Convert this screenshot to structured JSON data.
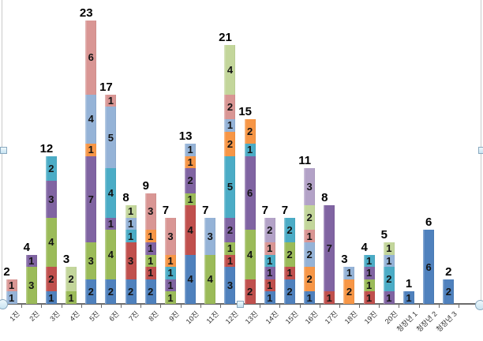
{
  "chart_data": {
    "type": "bar",
    "stacked": true,
    "title": "",
    "xlabel": "",
    "ylabel": "",
    "ylim": [
      0,
      23
    ],
    "gridlines": false,
    "value_axis_labels_visible": false,
    "legend": "none",
    "category_label_rotation_deg": 45,
    "palette": {
      "blue": "#4F81BD",
      "red": "#C0504D",
      "green": "#9BBB59",
      "purple": "#8064A2",
      "teal": "#4BACC6",
      "orange": "#F79646",
      "light-blue": "#95B3D7",
      "salmon": "#D99694",
      "light-green": "#C3D69B",
      "lavender": "#B3A2C7"
    },
    "categories": [
      "1진",
      "2진",
      "3진",
      "4진",
      "5진",
      "6진",
      "7진",
      "8진",
      "9진",
      "10진",
      "11진",
      "12진",
      "13진",
      "14진",
      "15진",
      "16진",
      "17진",
      "18진",
      "19진",
      "20진",
      "청장년 1",
      "청장년 2",
      "청장년 3"
    ],
    "bars": [
      {
        "category": "1진",
        "total": 2,
        "segments": [
          {
            "color": "light-blue",
            "value": 1
          },
          {
            "color": "salmon",
            "value": 1
          }
        ]
      },
      {
        "category": "2진",
        "total": 4,
        "segments": [
          {
            "color": "green",
            "value": 3
          },
          {
            "color": "purple",
            "value": 1
          }
        ]
      },
      {
        "category": "3진",
        "total": 12,
        "segments": [
          {
            "color": "blue",
            "value": 1
          },
          {
            "color": "red",
            "value": 2
          },
          {
            "color": "green",
            "value": 4
          },
          {
            "color": "purple",
            "value": 3
          },
          {
            "color": "teal",
            "value": 2
          }
        ]
      },
      {
        "category": "4진",
        "total": 3,
        "segments": [
          {
            "color": "green",
            "value": 1
          },
          {
            "color": "light-green",
            "value": 2
          }
        ]
      },
      {
        "category": "5진",
        "total": 23,
        "segments": [
          {
            "color": "blue",
            "value": 2
          },
          {
            "color": "green",
            "value": 3
          },
          {
            "color": "purple",
            "value": 7
          },
          {
            "color": "orange",
            "value": 1
          },
          {
            "color": "light-blue",
            "value": 4
          },
          {
            "color": "salmon",
            "value": 6
          }
        ]
      },
      {
        "category": "6진",
        "total": 17,
        "segments": [
          {
            "color": "blue",
            "value": 2
          },
          {
            "color": "green",
            "value": 4
          },
          {
            "color": "purple",
            "value": 1
          },
          {
            "color": "teal",
            "value": 4
          },
          {
            "color": "light-blue",
            "value": 5
          },
          {
            "color": "salmon",
            "value": 1
          }
        ]
      },
      {
        "category": "7진",
        "total": 8,
        "segments": [
          {
            "color": "blue",
            "value": 2
          },
          {
            "color": "red",
            "value": 3
          },
          {
            "color": "teal",
            "value": 1
          },
          {
            "color": "light-blue",
            "value": 1
          },
          {
            "color": "light-green",
            "value": 1
          }
        ]
      },
      {
        "category": "8진",
        "total": 9,
        "segments": [
          {
            "color": "blue",
            "value": 2
          },
          {
            "color": "red",
            "value": 1
          },
          {
            "color": "green",
            "value": 1
          },
          {
            "color": "purple",
            "value": 1
          },
          {
            "color": "orange",
            "value": 1
          },
          {
            "color": "salmon",
            "value": 3
          }
        ]
      },
      {
        "category": "9진",
        "total": 7,
        "segments": [
          {
            "color": "green",
            "value": 1
          },
          {
            "color": "purple",
            "value": 1
          },
          {
            "color": "teal",
            "value": 1
          },
          {
            "color": "orange",
            "value": 1
          },
          {
            "color": "salmon",
            "value": 3
          }
        ]
      },
      {
        "category": "10진",
        "total": 13,
        "segments": [
          {
            "color": "blue",
            "value": 4
          },
          {
            "color": "red",
            "value": 4
          },
          {
            "color": "green",
            "value": 1
          },
          {
            "color": "purple",
            "value": 2
          },
          {
            "color": "orange",
            "value": 1
          },
          {
            "color": "light-blue",
            "value": 1
          }
        ]
      },
      {
        "category": "11진",
        "total": 7,
        "segments": [
          {
            "color": "green",
            "value": 4
          },
          {
            "color": "light-blue",
            "value": 3
          }
        ]
      },
      {
        "category": "12진",
        "total": 21,
        "segments": [
          {
            "color": "blue",
            "value": 3
          },
          {
            "color": "red",
            "value": 1
          },
          {
            "color": "green",
            "value": 1
          },
          {
            "color": "purple",
            "value": 2
          },
          {
            "color": "teal",
            "value": 5
          },
          {
            "color": "orange",
            "value": 2
          },
          {
            "color": "light-blue",
            "value": 1
          },
          {
            "color": "salmon",
            "value": 2
          },
          {
            "color": "light-green",
            "value": 4
          }
        ]
      },
      {
        "category": "13진",
        "total": 15,
        "segments": [
          {
            "color": "red",
            "value": 2
          },
          {
            "color": "green",
            "value": 4
          },
          {
            "color": "purple",
            "value": 6
          },
          {
            "color": "teal",
            "value": 1
          },
          {
            "color": "orange",
            "value": 2
          }
        ]
      },
      {
        "category": "14진",
        "total": 7,
        "segments": [
          {
            "color": "blue",
            "value": 1
          },
          {
            "color": "red",
            "value": 1
          },
          {
            "color": "purple",
            "value": 1
          },
          {
            "color": "teal",
            "value": 1
          },
          {
            "color": "salmon",
            "value": 1
          },
          {
            "color": "lavender",
            "value": 2
          }
        ]
      },
      {
        "category": "15진",
        "total": 7,
        "segments": [
          {
            "color": "blue",
            "value": 2
          },
          {
            "color": "red",
            "value": 1
          },
          {
            "color": "green",
            "value": 2
          },
          {
            "color": "teal",
            "value": 2
          }
        ]
      },
      {
        "category": "16진",
        "total": 11,
        "segments": [
          {
            "color": "blue",
            "value": 1
          },
          {
            "color": "orange",
            "value": 2
          },
          {
            "color": "light-blue",
            "value": 2
          },
          {
            "color": "salmon",
            "value": 1
          },
          {
            "color": "light-green",
            "value": 2
          },
          {
            "color": "lavender",
            "value": 3
          }
        ]
      },
      {
        "category": "17진",
        "total": 8,
        "segments": [
          {
            "color": "red",
            "value": 1
          },
          {
            "color": "purple",
            "value": 7
          }
        ]
      },
      {
        "category": "18진",
        "total": 3,
        "segments": [
          {
            "color": "orange",
            "value": 2
          },
          {
            "color": "light-blue",
            "value": 1
          }
        ]
      },
      {
        "category": "19진",
        "total": 4,
        "segments": [
          {
            "color": "red",
            "value": 1
          },
          {
            "color": "green",
            "value": 1
          },
          {
            "color": "purple",
            "value": 1
          },
          {
            "color": "teal",
            "value": 1
          }
        ]
      },
      {
        "category": "20진",
        "total": 5,
        "segments": [
          {
            "color": "purple",
            "value": 1
          },
          {
            "color": "teal",
            "value": 2
          },
          {
            "color": "light-blue",
            "value": 1
          },
          {
            "color": "light-green",
            "value": 1
          }
        ]
      },
      {
        "category": "청장년 1",
        "total": 1,
        "segments": [
          {
            "color": "blue",
            "value": 1
          }
        ]
      },
      {
        "category": "청장년 2",
        "total": 6,
        "segments": [
          {
            "color": "blue",
            "value": 6
          }
        ]
      },
      {
        "category": "청장년 3",
        "total": 2,
        "segments": [
          {
            "color": "blue",
            "value": 2
          }
        ]
      }
    ]
  },
  "selection": {
    "state": "plot-area-selected",
    "handles": [
      "left-middle",
      "right-middle",
      "bottom-center",
      "bottom-left-corner",
      "bottom-right-corner"
    ]
  }
}
